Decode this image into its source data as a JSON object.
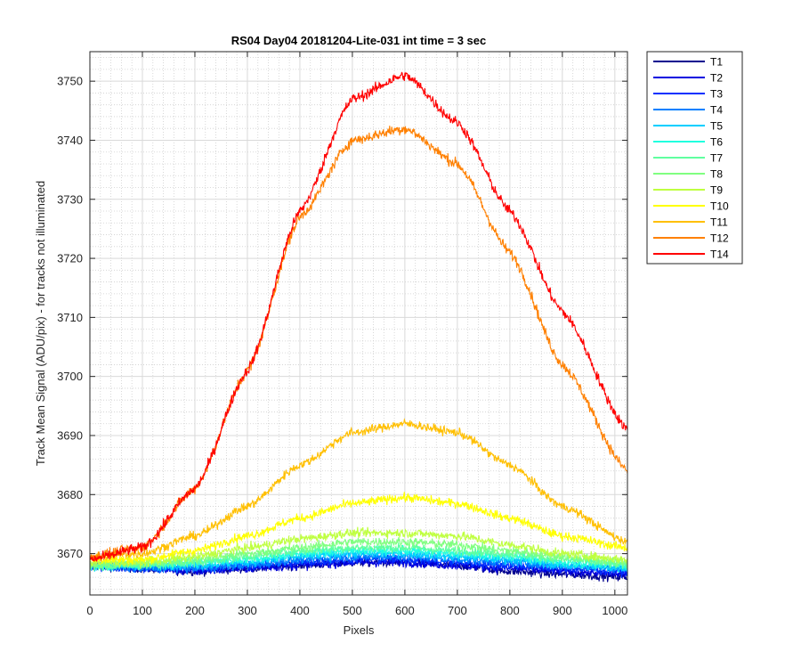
{
  "chart_data": {
    "type": "line",
    "title": "RS04 Day04 20181204-Lite-031 int time = 3 sec",
    "xlabel": "Pixels",
    "ylabel": "Track Mean Signal (ADU/pix) - for tracks not illuminated",
    "xlim": [
      0,
      1024
    ],
    "ylim": [
      3663,
      3755
    ],
    "xticks": [
      0,
      100,
      200,
      300,
      400,
      500,
      600,
      700,
      800,
      900,
      1000
    ],
    "yticks": [
      3670,
      3680,
      3690,
      3700,
      3710,
      3720,
      3730,
      3740,
      3750
    ],
    "grid": true,
    "minor_grid": true,
    "legend_position": "outside-right-top",
    "x": [
      0,
      100,
      200,
      300,
      400,
      500,
      600,
      700,
      800,
      900,
      1024
    ],
    "series": [
      {
        "name": "T1",
        "color": "#00008f",
        "values": [
          3668,
          3667.5,
          3667,
          3667.5,
          3668,
          3668.5,
          3668.5,
          3668,
          3667,
          3666.5,
          3666
        ]
      },
      {
        "name": "T2",
        "color": "#0000df",
        "values": [
          3668,
          3667.5,
          3667,
          3667.5,
          3668,
          3668.5,
          3668.5,
          3668,
          3667.5,
          3667,
          3666.5
        ]
      },
      {
        "name": "T3",
        "color": "#0030ff",
        "values": [
          3668,
          3667.5,
          3667.5,
          3668,
          3668.5,
          3669,
          3669,
          3668.5,
          3668,
          3667.5,
          3667
        ]
      },
      {
        "name": "T4",
        "color": "#0080ff",
        "values": [
          3668,
          3667.5,
          3667.5,
          3668,
          3669,
          3669.5,
          3669.5,
          3669,
          3668.5,
          3668,
          3667.5
        ]
      },
      {
        "name": "T5",
        "color": "#00cfff",
        "values": [
          3668,
          3668,
          3668,
          3668.5,
          3669.5,
          3670,
          3670,
          3669.5,
          3669,
          3668,
          3667.5
        ]
      },
      {
        "name": "T6",
        "color": "#20ffdf",
        "values": [
          3668,
          3668,
          3668.5,
          3669,
          3670,
          3670.5,
          3670.5,
          3670,
          3669.5,
          3668.5,
          3668
        ]
      },
      {
        "name": "T7",
        "color": "#60ffa0",
        "values": [
          3668,
          3668,
          3668.5,
          3669.5,
          3670.5,
          3671,
          3671,
          3670.5,
          3670,
          3669,
          3668
        ]
      },
      {
        "name": "T8",
        "color": "#80ff80",
        "values": [
          3668,
          3668.5,
          3669,
          3670,
          3671,
          3672,
          3672,
          3671.5,
          3670.5,
          3669.5,
          3668.5
        ]
      },
      {
        "name": "T9",
        "color": "#bfff40",
        "values": [
          3668.5,
          3668.5,
          3669.5,
          3671,
          3672.5,
          3673.5,
          3673.5,
          3673,
          3671.5,
          3670,
          3669
        ]
      },
      {
        "name": "T10",
        "color": "#ffff00",
        "values": [
          3669,
          3669,
          3670.5,
          3673,
          3676,
          3678.5,
          3679.5,
          3678.5,
          3676,
          3673,
          3671
        ]
      },
      {
        "name": "T11",
        "color": "#ffbf00",
        "values": [
          3669.5,
          3670,
          3673,
          3678,
          3685,
          3690.5,
          3692,
          3690.5,
          3685,
          3678,
          3672
        ]
      },
      {
        "name": "T12",
        "color": "#ff8000",
        "values": [
          3669.5,
          3671,
          3681,
          3701,
          3727,
          3740,
          3742,
          3736,
          3721,
          3702,
          3684
        ]
      },
      {
        "name": "T14",
        "color": "#ff0000",
        "values": [
          3669,
          3671,
          3681,
          3701,
          3728,
          3747,
          3751,
          3743,
          3728,
          3711,
          3691
        ]
      }
    ]
  }
}
